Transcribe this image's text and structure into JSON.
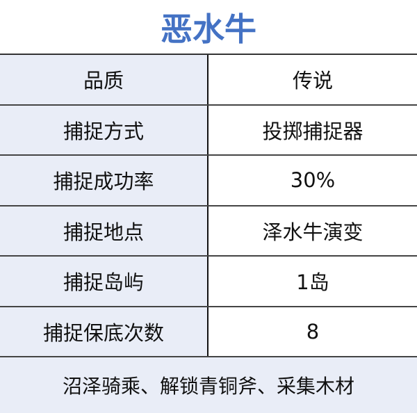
{
  "title": "恶水牛",
  "rows": [
    {
      "label": "品质",
      "value": "传说"
    },
    {
      "label": "捕捉方式",
      "value": "投掷捕捉器"
    },
    {
      "label": "捕捉成功率",
      "value": "30%"
    },
    {
      "label": "捕捉地点",
      "value": "泽水牛演变"
    },
    {
      "label": "捕捉岛屿",
      "value": "1岛"
    },
    {
      "label": "捕捉保底次数",
      "value": "8"
    }
  ],
  "footer": "沼泽骑乘、解锁青铜斧、采集木材",
  "colors": {
    "title": "#4472c4",
    "label_bg": "#e9edf7"
  }
}
